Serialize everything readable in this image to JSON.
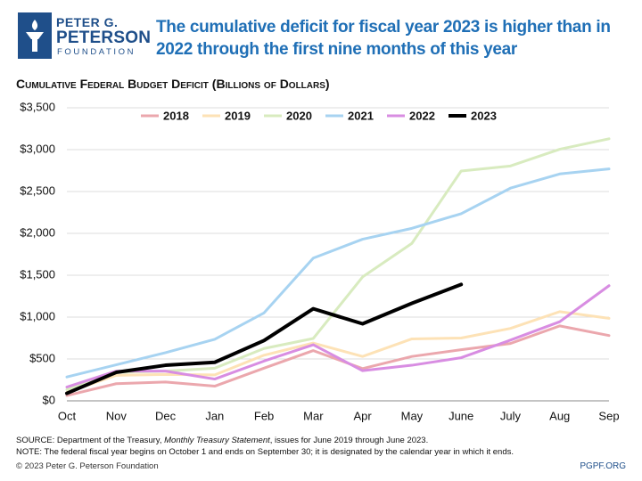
{
  "header": {
    "logo": [
      "PETER G.",
      "PETERSON",
      "FOUNDATION"
    ]
  },
  "chart_data": {
    "type": "line",
    "title": "The cumulative deficit for fiscal year 2023 is higher than in 2022 through the first nine months of this year",
    "subtitle": "Cumulative Federal Budget Deficit (Billions of Dollars)",
    "categories": [
      "Oct",
      "Nov",
      "Dec",
      "Jan",
      "Feb",
      "Mar",
      "Apr",
      "May",
      "June",
      "July",
      "Aug",
      "Sep"
    ],
    "ylim": [
      0,
      3500
    ],
    "yticks": [
      {
        "value": 0,
        "label": "$0"
      },
      {
        "value": 500,
        "label": "$500"
      },
      {
        "value": 1000,
        "label": "$1,000"
      },
      {
        "value": 1500,
        "label": "$1,500"
      },
      {
        "value": 2000,
        "label": "$2,000"
      },
      {
        "value": 2500,
        "label": "$2,500"
      },
      {
        "value": 3000,
        "label": "$3,000"
      },
      {
        "value": 3500,
        "label": "$3,500"
      }
    ],
    "grid": true,
    "legend": "top",
    "series": [
      {
        "name": "2018",
        "color": "#eba7ad",
        "values": [
          63,
          205,
          225,
          175,
          390,
          600,
          385,
          530,
          610,
          685,
          895,
          780
        ]
      },
      {
        "name": "2019",
        "color": "#fde2b6",
        "values": [
          100,
          305,
          315,
          310,
          545,
          690,
          530,
          740,
          750,
          865,
          1065,
          985
        ]
      },
      {
        "name": "2020",
        "color": "#d8ebbf",
        "values": [
          135,
          340,
          355,
          390,
          625,
          745,
          1480,
          1880,
          2745,
          2805,
          3005,
          3130
        ]
      },
      {
        "name": "2021",
        "color": "#a7d3f1",
        "values": [
          285,
          430,
          575,
          735,
          1050,
          1705,
          1930,
          2060,
          2235,
          2540,
          2710,
          2770
        ]
      },
      {
        "name": "2022",
        "color": "#d88de2",
        "values": [
          165,
          355,
          355,
          260,
          475,
          670,
          360,
          425,
          515,
          725,
          945,
          1375
        ]
      },
      {
        "name": "2023",
        "color": "#000000",
        "values": [
          90,
          340,
          425,
          460,
          720,
          1100,
          920,
          1165,
          1390,
          null,
          null,
          null
        ]
      }
    ]
  },
  "footer": {
    "source": [
      "SOURCE: Department of the Treasury,",
      "Monthly Treasury Statement",
      ", issues for June 2019 through June 2023."
    ],
    "note": "NOTE: The federal fiscal year begins on October 1 and ends on September 30; it is designated by the calendar year in which it ends.",
    "copyright": "© 2023 Peter G. Peterson Foundation",
    "site": "PGPF.ORG"
  }
}
